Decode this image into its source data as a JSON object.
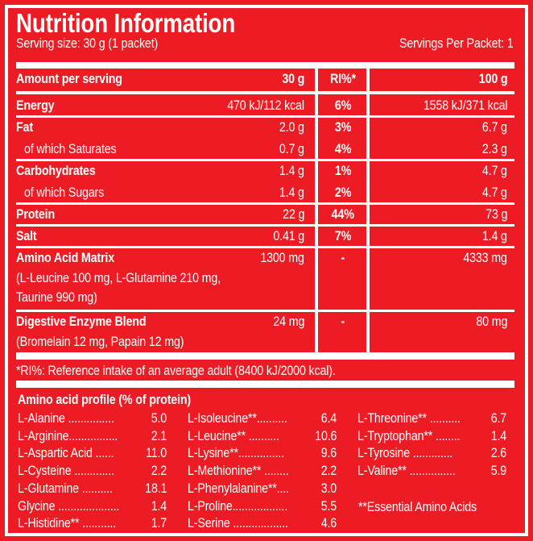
{
  "header": {
    "title": "Nutrition Information",
    "serving_size": "Serving size: 30 g (1 packet)",
    "servings_per_packet": "Servings Per Packet: 1"
  },
  "table": {
    "columns": [
      "Amount per serving",
      "30 g",
      "RI%*",
      "100 g"
    ],
    "rows": [
      {
        "label": "Energy",
        "per_serving": "470 kJ/112 kcal",
        "ri": "6%",
        "per_100g": "1558 kJ/371 kcal"
      },
      {
        "label": "Fat",
        "per_serving": "2.0 g",
        "ri": "3%",
        "per_100g": "6.7 g"
      },
      {
        "label": "of which Saturates",
        "per_serving": "0.7 g",
        "ri": "4%",
        "per_100g": "2.3 g"
      },
      {
        "label": "Carbohydrates",
        "per_serving": "1.4 g",
        "ri": "1%",
        "per_100g": "4.7 g"
      },
      {
        "label": "of which Sugars",
        "per_serving": "1.4 g",
        "ri": "2%",
        "per_100g": "4.7 g"
      },
      {
        "label": "Protein",
        "per_serving": "22 g",
        "ri": "44%",
        "per_100g": "73 g"
      },
      {
        "label": "Salt",
        "per_serving": "0.41 g",
        "ri": "7%",
        "per_100g": "1.4 g"
      },
      {
        "label": "Amino Acid Matrix",
        "per_serving": "1300 mg",
        "ri": "-",
        "per_100g": "4333 mg",
        "detail1": "(L-Leucine 100 mg, L-Glutamine 210 mg,",
        "detail2": "Taurine 990 mg)"
      },
      {
        "label": "Digestive Enzyme Blend",
        "per_serving": "24 mg",
        "ri": "-",
        "per_100g": "80 mg",
        "detail1": "(Bromelain 12 mg, Papain 12 mg)"
      }
    ],
    "footnote": "*RI%: Reference intake of an average adult (8400 kJ/2000 kcal)."
  },
  "amino_profile": {
    "title": "Amino acid profile (% of protein)",
    "columns": [
      [
        {
          "name": "L-Alanine ...............",
          "value": "5.0"
        },
        {
          "name": "L-Arginine................",
          "value": "2.1"
        },
        {
          "name": "L-Aspartic Acid ......",
          "value": "11.0"
        },
        {
          "name": "L-Cysteine .............",
          "value": "2.2"
        },
        {
          "name": "L-Glutamine ..........",
          "value": "18.1"
        },
        {
          "name": "Glycine ....................",
          "value": "1.4"
        },
        {
          "name": "L-Histidine** ...........",
          "value": "1.7"
        }
      ],
      [
        {
          "name": "L-Isoleucine**..........",
          "value": "6.4"
        },
        {
          "name": "L-Leucine** ..........",
          "value": "10.6"
        },
        {
          "name": "L-Lysine**...............",
          "value": "9.6"
        },
        {
          "name": "L-Methionine** ........",
          "value": "2.2"
        },
        {
          "name": "L-Phenylalanine**....",
          "value": "3.0"
        },
        {
          "name": "L-Proline..................",
          "value": "5.5"
        },
        {
          "name": "L-Serine ..................",
          "value": "4.6"
        }
      ],
      [
        {
          "name": "L-Threonine** ..........",
          "value": "6.7"
        },
        {
          "name": "L-Tryptophan** ........",
          "value": "1.4"
        },
        {
          "name": "L-Tyrosine .............",
          "value": "2.6"
        },
        {
          "name": "L-Valine** ...............",
          "value": "5.9"
        }
      ]
    ],
    "note": "**Essential Amino Acids"
  },
  "colors": {
    "background": "#ed1c24",
    "foreground": "#ffffff"
  }
}
